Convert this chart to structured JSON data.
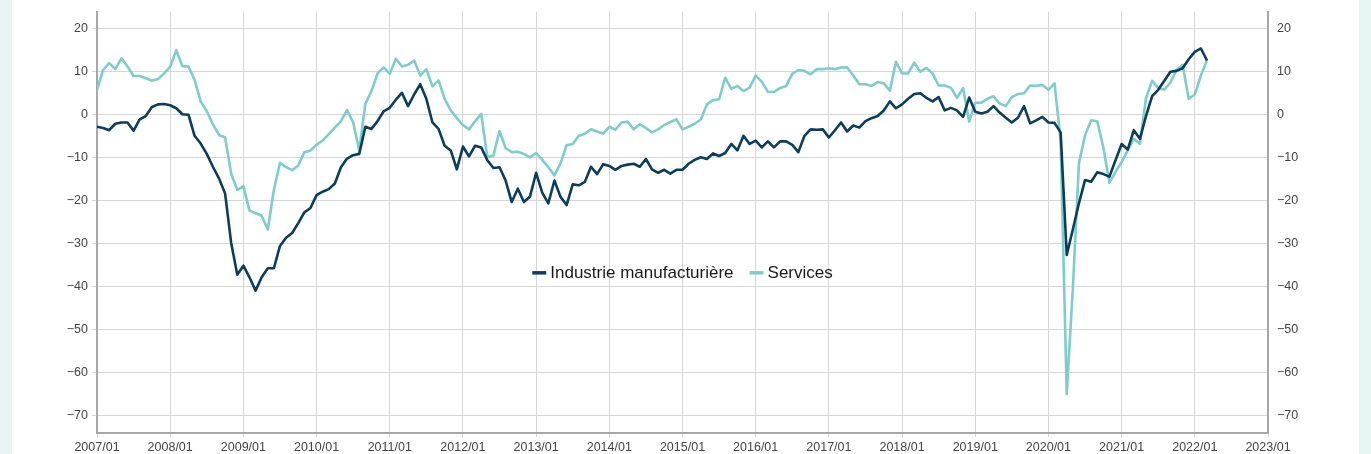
{
  "chart_data": {
    "type": "line",
    "x": [
      "2007-01",
      "2007-02",
      "2007-03",
      "2007-04",
      "2007-05",
      "2007-06",
      "2007-07",
      "2007-08",
      "2007-09",
      "2007-10",
      "2007-11",
      "2007-12",
      "2008-01",
      "2008-02",
      "2008-03",
      "2008-04",
      "2008-05",
      "2008-06",
      "2008-07",
      "2008-08",
      "2008-09",
      "2008-10",
      "2008-11",
      "2008-12",
      "2009-01",
      "2009-02",
      "2009-03",
      "2009-04",
      "2009-05",
      "2009-06",
      "2009-07",
      "2009-08",
      "2009-09",
      "2009-10",
      "2009-11",
      "2009-12",
      "2010-01",
      "2010-02",
      "2010-03",
      "2010-04",
      "2010-05",
      "2010-06",
      "2010-07",
      "2010-08",
      "2010-09",
      "2010-10",
      "2010-11",
      "2010-12",
      "2011-01",
      "2011-02",
      "2011-03",
      "2011-04",
      "2011-05",
      "2011-06",
      "2011-07",
      "2011-08",
      "2011-09",
      "2011-10",
      "2011-11",
      "2011-12",
      "2012-01",
      "2012-02",
      "2012-03",
      "2012-04",
      "2012-05",
      "2012-06",
      "2012-07",
      "2012-08",
      "2012-09",
      "2012-10",
      "2012-11",
      "2012-12",
      "2013-01",
      "2013-02",
      "2013-03",
      "2013-04",
      "2013-05",
      "2013-06",
      "2013-07",
      "2013-08",
      "2013-09",
      "2013-10",
      "2013-11",
      "2013-12",
      "2014-01",
      "2014-02",
      "2014-03",
      "2014-04",
      "2014-05",
      "2014-06",
      "2014-07",
      "2014-08",
      "2014-09",
      "2014-10",
      "2014-11",
      "2014-12",
      "2015-01",
      "2015-02",
      "2015-03",
      "2015-04",
      "2015-05",
      "2015-06",
      "2015-07",
      "2015-08",
      "2015-09",
      "2015-10",
      "2015-11",
      "2015-12",
      "2016-01",
      "2016-02",
      "2016-03",
      "2016-04",
      "2016-05",
      "2016-06",
      "2016-07",
      "2016-08",
      "2016-09",
      "2016-10",
      "2016-11",
      "2016-12",
      "2017-01",
      "2017-02",
      "2017-03",
      "2017-04",
      "2017-05",
      "2017-06",
      "2017-07",
      "2017-08",
      "2017-09",
      "2017-10",
      "2017-11",
      "2017-12",
      "2018-01",
      "2018-02",
      "2018-03",
      "2018-04",
      "2018-05",
      "2018-06",
      "2018-07",
      "2018-08",
      "2018-09",
      "2018-10",
      "2018-11",
      "2018-12",
      "2019-01",
      "2019-02",
      "2019-03",
      "2019-04",
      "2019-05",
      "2019-06",
      "2019-07",
      "2019-08",
      "2019-09",
      "2019-10",
      "2019-11",
      "2019-12",
      "2020-01",
      "2020-02",
      "2020-03",
      "2020-04",
      "2020-05",
      "2020-06",
      "2020-07",
      "2020-08",
      "2020-09",
      "2020-10",
      "2020-11",
      "2020-12",
      "2021-01",
      "2021-02",
      "2021-03",
      "2021-04",
      "2021-05",
      "2021-06",
      "2021-07",
      "2021-08",
      "2021-09",
      "2021-10",
      "2021-11",
      "2021-12",
      "2022-01",
      "2022-02",
      "2022-03"
    ],
    "series": [
      {
        "name": "Industrie manufacturière",
        "color": "#0b3d5c",
        "values": [
          -2.8,
          -3.1,
          -3.6,
          -2.1,
          -1.8,
          -1.8,
          -3.7,
          -1.1,
          -0.3,
          1.8,
          2.4,
          2.5,
          2.2,
          1.5,
          0.1,
          0,
          -4.9,
          -6.7,
          -9.1,
          -12.1,
          -14.8,
          -18.3,
          -29.8,
          -37.2,
          -35.1,
          -37.8,
          -40.9,
          -37.8,
          -35.7,
          -35.7,
          -30.5,
          -28.6,
          -27.5,
          -25.2,
          -22.7,
          -21.7,
          -18.7,
          -17.9,
          -17.3,
          -16.0,
          -12.2,
          -10.2,
          -9.4,
          -9.1,
          -2.8,
          -3.3,
          -1.5,
          0.8,
          1.6,
          3.5,
          5.1,
          2.0,
          4.7,
          7.1,
          3.7,
          -1.8,
          -3.3,
          -7.2,
          -8.3,
          -12.7,
          -7.4,
          -9.7,
          -7.2,
          -7.6,
          -10.6,
          -12.4,
          -12.2,
          -15.3,
          -20.3,
          -17.2,
          -20.3,
          -19.0,
          -13.5,
          -18.1,
          -20.6,
          -15.3,
          -19.1,
          -21.0,
          -16.2,
          -16.4,
          -15.6,
          -12.1,
          -13.8,
          -11.5,
          -11.9,
          -12.8,
          -11.9,
          -11.6,
          -11.4,
          -12.1,
          -10.3,
          -12.7,
          -13.5,
          -12.8,
          -13.7,
          -12.8,
          -12.8,
          -11.4,
          -10.5,
          -9.9,
          -10.3,
          -9.0,
          -9.6,
          -8.9,
          -6.8,
          -8.3,
          -4.9,
          -6.8,
          -6.0,
          -7.6,
          -6.2,
          -7.6,
          -6.2,
          -6.2,
          -7.0,
          -8.7,
          -4.9,
          -3.4,
          -3.5,
          -3.4,
          -5.3,
          -3.6,
          -1.8,
          -3.9,
          -2.5,
          -3.0,
          -1.5,
          -0.8,
          -0.3,
          1.0,
          3.1,
          1.5,
          2.4,
          3.7,
          4.8,
          5.0,
          3.9,
          3.1,
          4.1,
          1.0,
          1.6,
          1.0,
          -0.5,
          4.0,
          0.7,
          0.3,
          0.7,
          2.0,
          0.5,
          -0.7,
          -1.8,
          -0.7,
          2.0,
          -2.0,
          -1.3,
          -0.5,
          -1.8,
          -1.9,
          -4.1,
          -32.6,
          -26.7,
          -20.6,
          -15.2,
          -15.6,
          -13.4,
          -13.8,
          -14.4,
          -10.6,
          -6.8,
          -8.1,
          -3.6,
          -5.6,
          -0.3,
          4.3,
          5.8,
          7.9,
          10.0,
          10.2,
          10.8,
          12.9,
          14.6,
          15.4,
          12.6
        ]
      },
      {
        "name": "Services",
        "color": "#7ecdc9",
        "values": [
          5.8,
          10.4,
          12.0,
          10.6,
          13.1,
          11.2,
          9.0,
          9.0,
          8.5,
          7.9,
          8.3,
          9.6,
          11.2,
          15.0,
          11.3,
          11.2,
          8.1,
          3.1,
          0.8,
          -2.2,
          -4.7,
          -5.3,
          -13.7,
          -17.5,
          -16.6,
          -22.3,
          -22.9,
          -23.5,
          -26.7,
          -17.5,
          -11.2,
          -12.2,
          -12.9,
          -11.8,
          -8.7,
          -8.3,
          -7.0,
          -6.0,
          -4.5,
          -3.0,
          -1.5,
          1.1,
          -1.8,
          -8.3,
          2.5,
          5.5,
          9.6,
          11.0,
          9.5,
          13.0,
          11.2,
          11.6,
          12.6,
          9.1,
          10.6,
          6.6,
          8.0,
          3.7,
          1.0,
          -0.8,
          -2.4,
          -3.4,
          -1.5,
          0.2,
          -9.9,
          -9.5,
          -3.8,
          -7.8,
          -8.7,
          -8.6,
          -9.1,
          -9.9,
          -8.9,
          -10.5,
          -12.2,
          -14.1,
          -11.3,
          -7.1,
          -6.8,
          -4.9,
          -4.4,
          -3.4,
          -3.9,
          -4.4,
          -2.8,
          -3.5,
          -1.8,
          -1.6,
          -3.4,
          -2.2,
          -3.1,
          -4.1,
          -3.4,
          -2.4,
          -1.7,
          -1.1,
          -3.4,
          -2.8,
          -2.1,
          -1.1,
          2.4,
          3.4,
          3.6,
          8.6,
          6.0,
          6.7,
          5.5,
          6.3,
          9.1,
          7.7,
          5.3,
          5.3,
          6.2,
          6.7,
          9.5,
          10.4,
          10.2,
          9.4,
          10.6,
          10.6,
          10.8,
          10.6,
          11.0,
          11.0,
          9.1,
          7.1,
          7.1,
          6.7,
          7.6,
          7.3,
          5.6,
          12.3,
          9.6,
          9.6,
          12.1,
          10.0,
          10.9,
          9.6,
          6.8,
          6.8,
          6.3,
          3.9,
          6.2,
          -1.6,
          2.8,
          2.8,
          3.7,
          4.3,
          2.6,
          2.0,
          4.1,
          4.8,
          5.0,
          6.8,
          6.7,
          6.9,
          5.8,
          7.3,
          -6.0,
          -64.9,
          -40.4,
          -11.3,
          -4.8,
          -1.3,
          -1.5,
          -7.6,
          -15.8,
          -13.3,
          -11.0,
          -8.3,
          -5.6,
          -6.8,
          3.9,
          7.9,
          6.2,
          5.8,
          7.5,
          10.4,
          11.6,
          3.7,
          4.7,
          9.1,
          12.7
        ]
      }
    ],
    "xlim": [
      "2007-01",
      "2023-01"
    ],
    "xticks": [
      {
        "value": "2007-01",
        "label": "2007/01"
      },
      {
        "value": "2008-01",
        "label": "2008/01"
      },
      {
        "value": "2009-01",
        "label": "2009/01"
      },
      {
        "value": "2010-01",
        "label": "2010/01"
      },
      {
        "value": "2011-01",
        "label": "2011/01"
      },
      {
        "value": "2012-01",
        "label": "2012/01"
      },
      {
        "value": "2013-01",
        "label": "2013/01"
      },
      {
        "value": "2014-01",
        "label": "2014/01"
      },
      {
        "value": "2015-01",
        "label": "2015/01"
      },
      {
        "value": "2016-01",
        "label": "2016/01"
      },
      {
        "value": "2017-01",
        "label": "2017/01"
      },
      {
        "value": "2018-01",
        "label": "2018/01"
      },
      {
        "value": "2019-01",
        "label": "2019/01"
      },
      {
        "value": "2020-01",
        "label": "2020/01"
      },
      {
        "value": "2021-01",
        "label": "2021/01"
      },
      {
        "value": "2022-01",
        "label": "2022/01"
      },
      {
        "value": "2023-01",
        "label": "2023/01"
      }
    ],
    "ylim": [
      -74,
      24
    ],
    "yticks": [
      {
        "value": -70,
        "label": "−70"
      },
      {
        "value": -60,
        "label": "−60"
      },
      {
        "value": -50,
        "label": "−50"
      },
      {
        "value": -40,
        "label": "−40"
      },
      {
        "value": -30,
        "label": "−30"
      },
      {
        "value": -20,
        "label": "−20"
      },
      {
        "value": -10,
        "label": "−10"
      },
      0,
      10,
      20
    ],
    "y2lim": [
      -74,
      24
    ],
    "y2ticks": [
      {
        "value": -70,
        "label": "−70"
      },
      {
        "value": -60,
        "label": "−60"
      },
      {
        "value": -50,
        "label": "−50"
      },
      {
        "value": -40,
        "label": "−40"
      },
      {
        "value": -30,
        "label": "−30"
      },
      {
        "value": -20,
        "label": "−20"
      },
      {
        "value": -10,
        "label": "−10"
      },
      0,
      10,
      20
    ],
    "grid": true,
    "legend": "center",
    "marker": "none",
    "line_style": "solid"
  }
}
